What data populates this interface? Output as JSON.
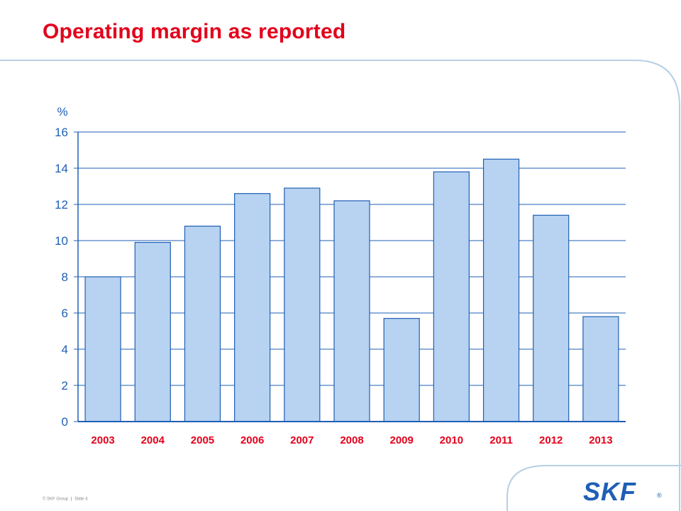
{
  "slide": {
    "title": "Operating margin as reported",
    "footer_copyright": "© SKF Group",
    "footer_slide": "Slide 4",
    "logo_text": "SKF",
    "logo_mark": "®"
  },
  "colors": {
    "title": "#e3001b",
    "bar_fill": "#b7d3f1",
    "bar_stroke": "#1f5fb5",
    "axis": "#1f5fb5",
    "grid": "#1f5fb5",
    "tick_label": "#1f5fb5",
    "category_label": "#e3001b",
    "logo": "#1f5fb5",
    "decorative_curve": "#b8cee6"
  },
  "chart_data": {
    "type": "bar",
    "title": "",
    "xlabel": "",
    "ylabel": "%",
    "categories": [
      "2003",
      "2004",
      "2005",
      "2006",
      "2007",
      "2008",
      "2009",
      "2010",
      "2011",
      "2012",
      "2013"
    ],
    "values": [
      8.0,
      9.9,
      10.8,
      12.6,
      12.9,
      12.2,
      5.7,
      13.8,
      14.5,
      11.4,
      5.8
    ],
    "ylim": [
      0,
      16
    ],
    "yticks": [
      0,
      2,
      4,
      6,
      8,
      10,
      12,
      14,
      16
    ],
    "grid": true,
    "legend": "none"
  }
}
